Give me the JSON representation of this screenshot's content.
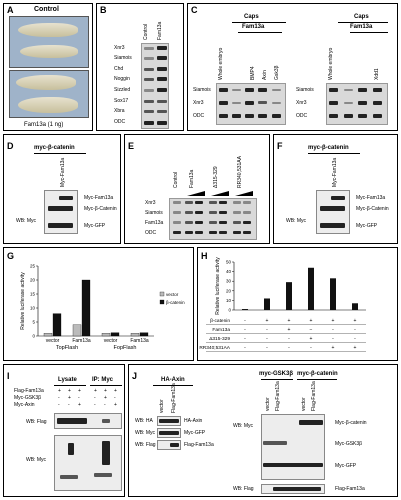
{
  "panels": {
    "A": {
      "label": "A",
      "title": "Control",
      "subtitle": "Fam13a (1 ng)"
    },
    "B": {
      "label": "B",
      "cols": [
        "Control",
        "Fam13a"
      ],
      "rows": [
        "Xnr3",
        "Siamois",
        "Chd",
        "Noggin",
        "Sizzled",
        "Sox17",
        "Xbra",
        "ODC"
      ]
    },
    "C": {
      "label": "C",
      "caps": "Caps",
      "caps2": "Caps",
      "fam": "Fam13a",
      "fam2": "Fam13a",
      "cols_left": [
        "Whole embryo",
        "BMP4",
        "Axin",
        "Gsk3β"
      ],
      "cols_right": [
        "Whole embryo",
        "Xdd1"
      ],
      "rows": [
        "Siamois",
        "Xnr3",
        "ODC"
      ]
    },
    "D": {
      "label": "D",
      "title": "myc-β-catenin",
      "col": "Myc-Fam13a",
      "wb": "WB: Myc",
      "bands": [
        "Myc-Fam13a",
        "Myc-β-Catenin",
        "Myc-GFP"
      ]
    },
    "E": {
      "label": "E",
      "cols": [
        "Control",
        "Fam13a",
        "Δ315-329",
        "RR340,531AA"
      ],
      "rows": [
        "Xnr3",
        "Siamois",
        "Fam13a",
        "ODC"
      ]
    },
    "F": {
      "label": "F",
      "title": "myc-β-catenin",
      "col": "Myc-Fam13a",
      "wb": "WB: Myc",
      "bands": [
        "Myc-Fam13a",
        "Myc-β-Catenin",
        "Myc-GFP"
      ]
    },
    "G": {
      "label": "G",
      "ylabel": "Relative luciferase activity",
      "legend": [
        "vector",
        "β-catenin"
      ],
      "groups": [
        "TopFlash",
        "FopFlash"
      ]
    },
    "H": {
      "label": "H",
      "ylabel": "Relative luciferase activity",
      "table_rows": [
        {
          "name": "β-catenin",
          "vals": [
            "-",
            "+",
            "+",
            "+",
            "+",
            "+"
          ]
        },
        {
          "name": "Fam13a",
          "vals": [
            "-",
            "-",
            "+",
            "−",
            "-",
            "-"
          ]
        },
        {
          "name": "Δ315-329",
          "vals": [
            "-",
            "-",
            "-",
            "+",
            "-",
            "-"
          ]
        },
        {
          "name": "RR340;531AA",
          "vals": [
            "-",
            "-",
            "-",
            "-",
            "+",
            "+"
          ]
        }
      ]
    },
    "I": {
      "label": "I",
      "lysate": "Lysate",
      "ip": "IP: Myc",
      "rows": [
        {
          "name": "Flag-Fam13a",
          "vals": [
            "+",
            "+",
            "+",
            "+",
            "+",
            "+"
          ]
        },
        {
          "name": "Myc-GSK3β",
          "vals": [
            "-",
            "+",
            "-",
            "-",
            "+",
            "-"
          ]
        },
        {
          "name": "Myc-Axin",
          "vals": [
            "-",
            "-",
            "+",
            "-",
            "-",
            "+"
          ]
        }
      ],
      "wb1": "WB: Flag",
      "wb2": "WB: Myc"
    },
    "J": {
      "label": "J",
      "haaxin": "HA-Axin",
      "mycgsk": "myc-GSK3β",
      "myccat": "myc-β-catenin",
      "cols": [
        "vector",
        "Flag-Fam13a"
      ],
      "left_wb": [
        "WB: HA",
        "WB: Myc",
        "WB: Flag"
      ],
      "left_bands": [
        "HA-Axin",
        "Myc-GFP",
        "Flag-Fam13a"
      ],
      "right_wb": [
        "WB: Myc",
        "WB: Flag"
      ],
      "right_bands": [
        "Myc-β-catenin",
        "Myc-GSK3β",
        "Myc-GFP",
        "Flag-Fam13a"
      ]
    }
  },
  "chart_data": [
    {
      "type": "bar",
      "panel": "G",
      "categories": [
        "TopFlash vector",
        "TopFlash Fam13a",
        "FopFlash vector",
        "FopFlash Fam13a"
      ],
      "series": [
        {
          "name": "vector",
          "values": [
            1,
            4,
            1,
            1
          ]
        },
        {
          "name": "β-catenin",
          "values": [
            8,
            20,
            1.2,
            1.2
          ]
        }
      ],
      "tick_labels": [
        "vector",
        "Fam13a",
        "vector",
        "Fam13a"
      ],
      "ylabel": "Relative luciferase activity",
      "ylim": [
        0,
        25
      ],
      "yticks": [
        0,
        5,
        10,
        15,
        20,
        25
      ],
      "legend": "right"
    },
    {
      "type": "bar",
      "panel": "H",
      "categories": [
        "1",
        "2",
        "3",
        "4",
        "5",
        "6"
      ],
      "values": [
        1,
        12,
        29,
        44,
        33,
        7
      ],
      "ylabel": "Relative luciferase activity",
      "ylim": [
        0,
        50
      ],
      "yticks": [
        0,
        10,
        20,
        30,
        40,
        50
      ]
    }
  ]
}
